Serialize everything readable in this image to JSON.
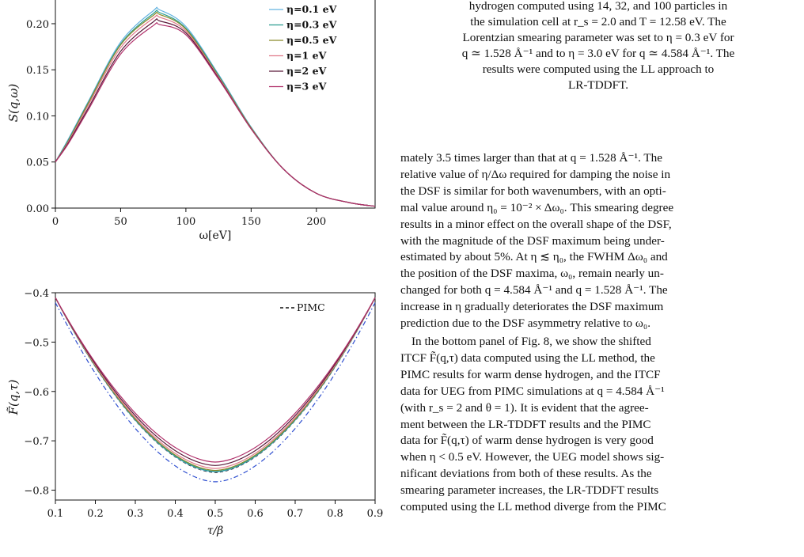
{
  "chart_data": [
    {
      "type": "line",
      "ylabel": "S(q,ω)",
      "xlabel": "ω[eV]",
      "xlim": [
        0,
        245
      ],
      "ylim": [
        0.0,
        0.23
      ],
      "x_ticks": [
        "0",
        "50",
        "100",
        "150",
        "200"
      ],
      "y_ticks": [
        "0.00",
        "0.05",
        "0.10",
        "0.15",
        "0.20"
      ],
      "grid": false,
      "legend_position": "top-right",
      "series": [
        {
          "name": "η=0.1 eV",
          "color": "#63b3e0",
          "x": [
            0,
            10,
            25,
            50,
            75,
            80,
            100,
            125,
            150,
            175,
            200,
            225,
            245
          ],
          "values": [
            0.05,
            0.075,
            0.115,
            0.18,
            0.214,
            0.215,
            0.197,
            0.145,
            0.088,
            0.042,
            0.016,
            0.006,
            0.002
          ]
        },
        {
          "name": "η=0.3 eV",
          "color": "#2a9d8f",
          "x": [
            0,
            10,
            25,
            50,
            75,
            80,
            100,
            125,
            150,
            175,
            200,
            225,
            245
          ],
          "values": [
            0.05,
            0.074,
            0.114,
            0.178,
            0.211,
            0.212,
            0.195,
            0.144,
            0.087,
            0.042,
            0.016,
            0.006,
            0.002
          ]
        },
        {
          "name": "η=0.5 eV",
          "color": "#8a8a2a",
          "x": [
            0,
            10,
            25,
            50,
            75,
            80,
            100,
            125,
            150,
            175,
            200,
            225,
            245
          ],
          "values": [
            0.05,
            0.073,
            0.113,
            0.177,
            0.209,
            0.21,
            0.194,
            0.143,
            0.087,
            0.042,
            0.016,
            0.006,
            0.002
          ]
        },
        {
          "name": "η=1 eV",
          "color": "#e07a8a",
          "x": [
            0,
            10,
            25,
            50,
            75,
            80,
            100,
            125,
            150,
            175,
            200,
            225,
            245
          ],
          "values": [
            0.05,
            0.072,
            0.111,
            0.174,
            0.206,
            0.207,
            0.192,
            0.142,
            0.086,
            0.042,
            0.016,
            0.006,
            0.002
          ]
        },
        {
          "name": "η=2 eV",
          "color": "#5a1a3a",
          "x": [
            0,
            10,
            25,
            50,
            75,
            80,
            100,
            125,
            150,
            175,
            200,
            225,
            245
          ],
          "values": [
            0.05,
            0.071,
            0.108,
            0.17,
            0.202,
            0.203,
            0.19,
            0.141,
            0.086,
            0.042,
            0.016,
            0.006,
            0.002
          ]
        },
        {
          "name": "η=3 eV",
          "color": "#b0306a",
          "x": [
            0,
            10,
            25,
            50,
            75,
            80,
            100,
            125,
            150,
            175,
            200,
            225,
            245
          ],
          "values": [
            0.05,
            0.07,
            0.106,
            0.167,
            0.198,
            0.199,
            0.188,
            0.14,
            0.086,
            0.042,
            0.016,
            0.006,
            0.002
          ]
        }
      ]
    },
    {
      "type": "line",
      "ylabel": "F̃(q,τ)",
      "xlabel": "τ/β",
      "xlim": [
        0.1,
        0.9
      ],
      "ylim": [
        -0.82,
        -0.4
      ],
      "x_ticks": [
        "0.1",
        "0.2",
        "0.3",
        "0.4",
        "0.5",
        "0.6",
        "0.7",
        "0.8",
        "0.9"
      ],
      "y_ticks": [
        "−0.4",
        "−0.5",
        "−0.6",
        "−0.7",
        "−0.8"
      ],
      "grid": false,
      "legend_position": "top-right",
      "series": [
        {
          "name": "PIMC",
          "color": "#111111",
          "style": "dashed",
          "x": [
            0.1,
            0.5,
            0.9
          ],
          "values": [
            -0.41,
            -0.764,
            -0.41
          ]
        },
        {
          "name": "",
          "color": "#2f4fd0",
          "style": "dashdot",
          "x": [
            0.1,
            0.5,
            0.9
          ],
          "values": [
            -0.42,
            -0.783,
            -0.42
          ]
        },
        {
          "name": "",
          "color": "#63b3e0",
          "x": [
            0.1,
            0.5,
            0.9
          ],
          "values": [
            -0.41,
            -0.763,
            -0.41
          ]
        },
        {
          "name": "",
          "color": "#2a9d8f",
          "x": [
            0.1,
            0.5,
            0.9
          ],
          "values": [
            -0.41,
            -0.762,
            -0.41
          ]
        },
        {
          "name": "",
          "color": "#8a8a2a",
          "x": [
            0.1,
            0.5,
            0.9
          ],
          "values": [
            -0.41,
            -0.76,
            -0.41
          ]
        },
        {
          "name": "",
          "color": "#e07a8a",
          "x": [
            0.1,
            0.5,
            0.9
          ],
          "values": [
            -0.41,
            -0.756,
            -0.41
          ]
        },
        {
          "name": "",
          "color": "#5a1a3a",
          "x": [
            0.1,
            0.5,
            0.9
          ],
          "values": [
            -0.41,
            -0.75,
            -0.41
          ]
        },
        {
          "name": "",
          "color": "#b0306a",
          "x": [
            0.1,
            0.5,
            0.9
          ],
          "values": [
            -0.41,
            -0.743,
            -0.41
          ]
        }
      ]
    }
  ],
  "caption_lines": [
    "hydrogen computed using 14, 32, and 100 particles in",
    "the simulation cell at r_s = 2.0 and T = 12.58 eV. The",
    "Lorentzian smearing parameter was set to η = 0.3 eV for",
    "q ≃ 1.528 Å⁻¹ and to η = 3.0 eV for q ≃ 4.584 Å⁻¹. The",
    "results were computed using the LL approach to",
    "LR-TDDFT."
  ],
  "body_lines": [
    "mately 3.5 times larger than that at q = 1.528 Å⁻¹. The",
    "relative value of η/Δω required for damping the noise in",
    "the DSF is similar for both wavenumbers, with an opti-",
    "mal value around η₀ = 10⁻² × Δω₀. This smearing degree",
    "results in a minor effect on the overall shape of the DSF,",
    "with the magnitude of the DSF maximum being under-",
    "estimated by about 5%. At η ≲ η₀, the FWHM Δω₀ and",
    "the position of the DSF maxima, ω₀, remain nearly un-",
    "changed for both q = 4.584 Å⁻¹ and q = 1.528 Å⁻¹. The",
    "increase in η gradually deteriorates the DSF maximum",
    "prediction due to the DSF asymmetry relative to ω₀."
  ],
  "body2_lines": [
    "In the bottom panel of Fig. 8, we show the shifted",
    "ITCF F̃(q,τ) data computed using the LL method, the",
    "PIMC results for warm dense hydrogen, and the ITCF",
    "data for UEG from PIMC simulations at q = 4.584 Å⁻¹",
    "(with r_s = 2 and θ = 1). It is evident that the agree-",
    "ment between the LR-TDDFT results and the PIMC",
    "data for F̃(q,τ) of warm dense hydrogen is very good",
    "when η < 0.5 eV. However, the UEG model shows sig-",
    "nificant deviations from both of these results. As the",
    "smearing parameter increases, the LR-TDDFT results",
    "computed using the LL method diverge from the PIMC"
  ]
}
